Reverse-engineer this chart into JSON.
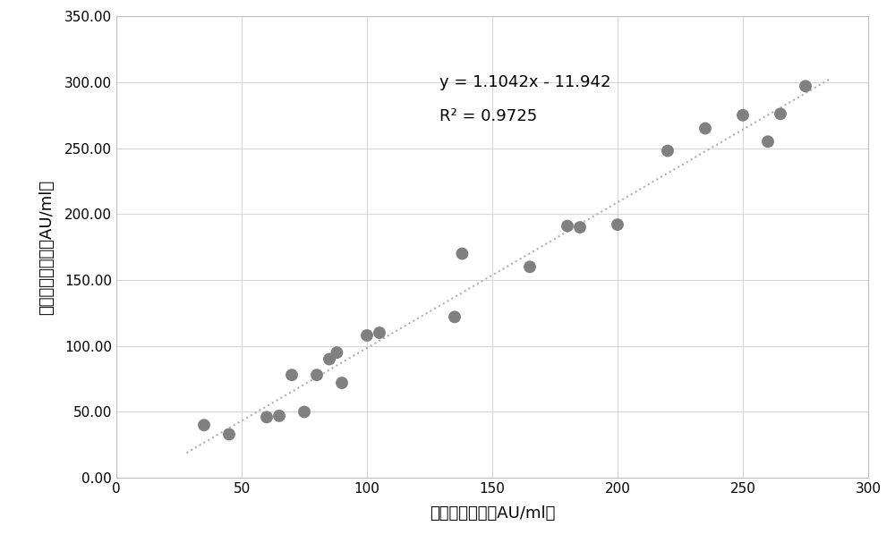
{
  "x_data": [
    35,
    45,
    60,
    65,
    70,
    75,
    80,
    85,
    88,
    90,
    100,
    105,
    135,
    138,
    165,
    180,
    185,
    200,
    220,
    235,
    250,
    260,
    265,
    275
  ],
  "y_data": [
    40,
    33,
    46,
    47,
    78,
    50,
    78,
    90,
    95,
    72,
    108,
    110,
    122,
    170,
    160,
    191,
    190,
    192,
    248,
    265,
    275,
    255,
    276,
    297
  ],
  "equation": "y = 1.1042x - 11.942",
  "r_squared": "R² = 0.9725",
  "slope": 1.1042,
  "intercept": -11.942,
  "xlabel": "对照试剂测值（AU/ml）",
  "ylabel": "条件二方法测值（AU/ml）",
  "xlim": [
    0,
    300
  ],
  "ylim": [
    0,
    350
  ],
  "xticks": [
    0,
    50,
    100,
    150,
    200,
    250,
    300
  ],
  "yticks": [
    0.0,
    50.0,
    100.0,
    150.0,
    200.0,
    250.0,
    300.0,
    350.0
  ],
  "dot_color": "#808080",
  "line_color": "#b0b0b0",
  "background_color": "#ffffff",
  "grid_color": "#d8d8d8",
  "line_x_start": 28,
  "line_x_end": 285,
  "dot_size": 100,
  "line_width": 1.5,
  "font_size_label": 13,
  "font_size_annot": 13,
  "font_size_tick": 11
}
